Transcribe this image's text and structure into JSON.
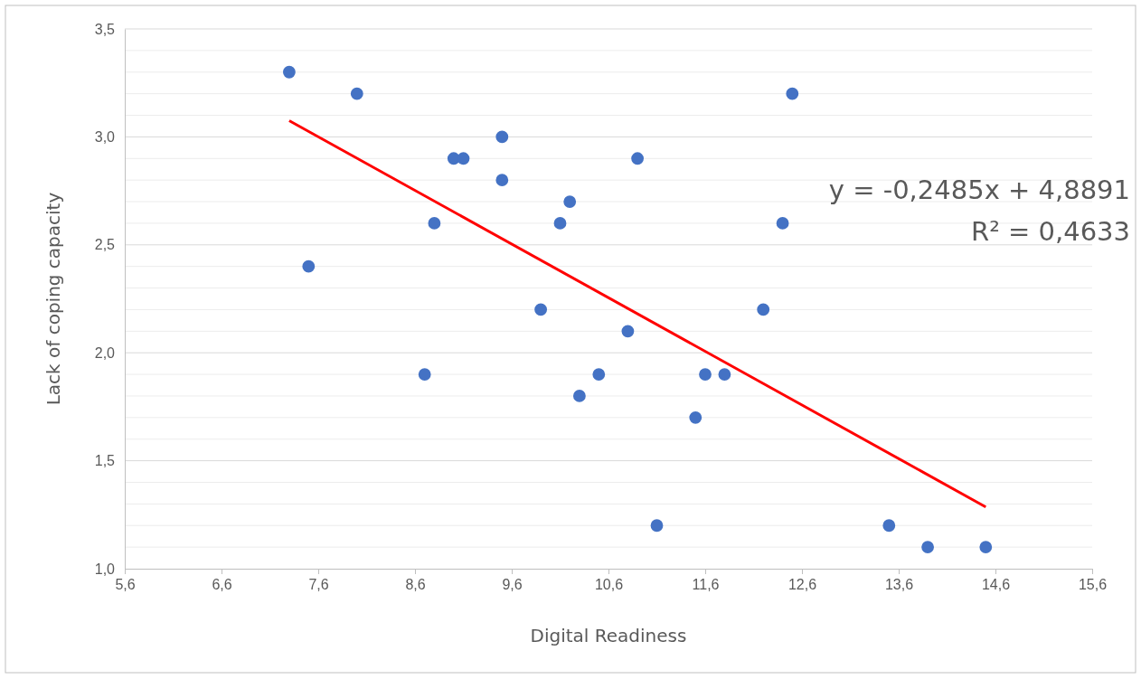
{
  "chart_data": {
    "type": "scatter",
    "xlabel": "Digital Readiness",
    "ylabel": "Lack of coping capacity",
    "xlim": [
      5.6,
      15.6
    ],
    "xticks": [
      {
        "value": 5.6,
        "label": "5,6"
      },
      {
        "value": 6.6,
        "label": "6,6"
      },
      {
        "value": 7.6,
        "label": "7,6"
      },
      {
        "value": 8.6,
        "label": "8,6"
      },
      {
        "value": 9.6,
        "label": "9,6"
      },
      {
        "value": 10.6,
        "label": "10,6"
      },
      {
        "value": 11.6,
        "label": "11,6"
      },
      {
        "value": 12.6,
        "label": "12,6"
      },
      {
        "value": 13.6,
        "label": "13,6"
      },
      {
        "value": 14.6,
        "label": "14,6"
      },
      {
        "value": 15.6,
        "label": "15,6"
      }
    ],
    "ylim": [
      1.0,
      3.5
    ],
    "yticks": [
      {
        "value": 1.0,
        "label": "1,0"
      },
      {
        "value": 1.1,
        "label": null
      },
      {
        "value": 1.2,
        "label": null
      },
      {
        "value": 1.3,
        "label": null
      },
      {
        "value": 1.4,
        "label": null
      },
      {
        "value": 1.5,
        "label": "1,5"
      },
      {
        "value": 1.6,
        "label": null
      },
      {
        "value": 1.7,
        "label": null
      },
      {
        "value": 1.8,
        "label": null
      },
      {
        "value": 1.9,
        "label": null
      },
      {
        "value": 2.0,
        "label": "2,0"
      },
      {
        "value": 2.1,
        "label": null
      },
      {
        "value": 2.2,
        "label": null
      },
      {
        "value": 2.3,
        "label": null
      },
      {
        "value": 2.4,
        "label": null
      },
      {
        "value": 2.5,
        "label": "2,5"
      },
      {
        "value": 2.6,
        "label": null
      },
      {
        "value": 2.7,
        "label": null
      },
      {
        "value": 2.8,
        "label": null
      },
      {
        "value": 2.9,
        "label": null
      },
      {
        "value": 3.0,
        "label": "3,0"
      },
      {
        "value": 3.1,
        "label": null
      },
      {
        "value": 3.2,
        "label": null
      },
      {
        "value": 3.3,
        "label": null
      },
      {
        "value": 3.4,
        "label": null
      },
      {
        "value": 3.5,
        "label": "3,5"
      }
    ],
    "grid": "y",
    "series": [
      {
        "marker": "circle",
        "color": "#4472c4",
        "x": [
          7.3,
          8.0,
          7.5,
          8.7,
          8.8,
          9.0,
          9.1,
          9.5,
          9.5,
          9.9,
          10.1,
          10.2,
          10.3,
          10.5,
          10.8,
          10.9,
          11.1,
          11.5,
          11.6,
          11.8,
          12.2,
          12.4,
          12.5,
          13.5,
          13.9,
          14.5
        ],
        "values": [
          3.3,
          3.2,
          2.4,
          1.9,
          2.6,
          2.9,
          2.9,
          3.0,
          2.8,
          2.2,
          2.6,
          2.7,
          1.8,
          1.9,
          2.1,
          2.9,
          1.2,
          1.7,
          1.9,
          1.9,
          2.2,
          2.6,
          3.2,
          1.2,
          1.1,
          1.1
        ]
      },
      {
        "type": "line",
        "color": "#ff0000",
        "x": [
          7.3,
          14.5
        ],
        "values": [
          3.075,
          1.286
        ]
      }
    ],
    "annotations": [
      "y = -0,2485x + 4,8891",
      "R² = 0,4633"
    ]
  }
}
